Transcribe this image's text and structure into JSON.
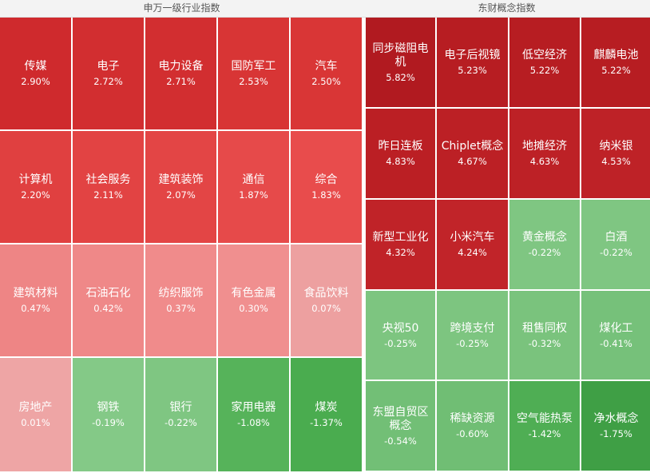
{
  "left_panel": {
    "title": "申万一级行业指数",
    "tiles": [
      {
        "name": "传媒",
        "pct": "2.90%",
        "color": "#cf2a2d"
      },
      {
        "name": "电子",
        "pct": "2.72%",
        "color": "#d22e30"
      },
      {
        "name": "电力设备",
        "pct": "2.71%",
        "color": "#d22e30"
      },
      {
        "name": "国防军工",
        "pct": "2.53%",
        "color": "#d83535"
      },
      {
        "name": "汽车",
        "pct": "2.50%",
        "color": "#d93636"
      },
      {
        "name": "计算机",
        "pct": "2.20%",
        "color": "#e04040"
      },
      {
        "name": "社会服务",
        "pct": "2.11%",
        "color": "#e24343"
      },
      {
        "name": "建筑装饰",
        "pct": "2.07%",
        "color": "#e34545"
      },
      {
        "name": "通信",
        "pct": "1.87%",
        "color": "#e64a4a"
      },
      {
        "name": "综合",
        "pct": "1.83%",
        "color": "#e84c4c"
      },
      {
        "name": "建筑材料",
        "pct": "0.47%",
        "color": "#ee8585"
      },
      {
        "name": "石油石化",
        "pct": "0.42%",
        "color": "#ef8888"
      },
      {
        "name": "纺织服饰",
        "pct": "0.37%",
        "color": "#f08b8b"
      },
      {
        "name": "有色金属",
        "pct": "0.30%",
        "color": "#f08f8f"
      },
      {
        "name": "食品饮料",
        "pct": "0.07%",
        "color": "#eda0a0"
      },
      {
        "name": "房地产",
        "pct": "0.01%",
        "color": "#eea5a5"
      },
      {
        "name": "钢铁",
        "pct": "-0.19%",
        "color": "#84c987"
      },
      {
        "name": "银行",
        "pct": "-0.22%",
        "color": "#7fc682"
      },
      {
        "name": "家用电器",
        "pct": "-1.08%",
        "color": "#56b35a"
      },
      {
        "name": "煤炭",
        "pct": "-1.37%",
        "color": "#4aac4f"
      }
    ]
  },
  "right_panel": {
    "title": "东财概念指数",
    "tiles": [
      {
        "name": "同步磁阻电机",
        "pct": "5.82%",
        "color": "#b11a20"
      },
      {
        "name": "电子后视镜",
        "pct": "5.23%",
        "color": "#b71d22"
      },
      {
        "name": "低空经济",
        "pct": "5.22%",
        "color": "#b71d22"
      },
      {
        "name": "麒麟电池",
        "pct": "5.22%",
        "color": "#b71d22"
      },
      {
        "name": "昨日连板",
        "pct": "4.83%",
        "color": "#bb1f24"
      },
      {
        "name": "Chiplet概念",
        "pct": "4.67%",
        "color": "#bc2025"
      },
      {
        "name": "地摊经济",
        "pct": "4.63%",
        "color": "#bd2126"
      },
      {
        "name": "纳米银",
        "pct": "4.53%",
        "color": "#be2227"
      },
      {
        "name": "新型工业化",
        "pct": "4.32%",
        "color": "#c02328"
      },
      {
        "name": "小米汽车",
        "pct": "4.24%",
        "color": "#c12429"
      },
      {
        "name": "黄金概念",
        "pct": "-0.22%",
        "color": "#7fc682"
      },
      {
        "name": "白酒",
        "pct": "-0.22%",
        "color": "#7fc682"
      },
      {
        "name": "央视50",
        "pct": "-0.25%",
        "color": "#7dc580"
      },
      {
        "name": "跨境支付",
        "pct": "-0.25%",
        "color": "#7dc580"
      },
      {
        "name": "租售同权",
        "pct": "-0.32%",
        "color": "#7ac37d"
      },
      {
        "name": "煤化工",
        "pct": "-0.41%",
        "color": "#76c17a"
      },
      {
        "name": "东盟自贸区概念",
        "pct": "-0.54%",
        "color": "#72bf76"
      },
      {
        "name": "稀缺资源",
        "pct": "-0.60%",
        "color": "#70be74"
      },
      {
        "name": "空气能热泵",
        "pct": "-1.42%",
        "color": "#4fae54"
      },
      {
        "name": "净水概念",
        "pct": "-1.75%",
        "color": "#3f9f45"
      }
    ]
  }
}
